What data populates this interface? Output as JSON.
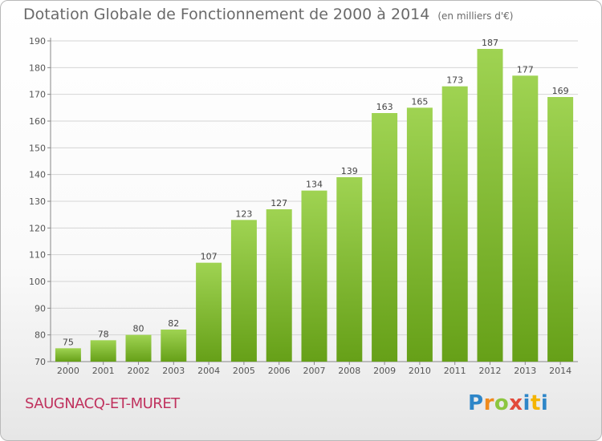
{
  "header": {
    "title": "Dotation Globale de Fonctionnement de 2000 à 2014",
    "subtitle": "(en milliers d'€)"
  },
  "footer": {
    "commune": "SAUGNACQ-ET-MURET",
    "logo_text": "Proxiti"
  },
  "colors": {
    "bar_top": "#9fd352",
    "bar_bottom": "#66a018",
    "grid": "#d4d4d4",
    "commune_text": "#c0325e"
  },
  "chart_data": {
    "type": "bar",
    "title": "Dotation Globale de Fonctionnement de 2000 à 2014",
    "subtitle": "(en milliers d'€)",
    "xlabel": "",
    "ylabel": "",
    "categories": [
      "2000",
      "2001",
      "2002",
      "2003",
      "2004",
      "2005",
      "2006",
      "2007",
      "2008",
      "2009",
      "2010",
      "2011",
      "2012",
      "2013",
      "2014"
    ],
    "values": [
      75,
      78,
      80,
      82,
      107,
      123,
      127,
      134,
      139,
      163,
      165,
      173,
      187,
      177,
      169
    ],
    "ylim": [
      70,
      190
    ],
    "yticks": [
      70,
      80,
      90,
      100,
      110,
      120,
      130,
      140,
      150,
      160,
      170,
      180,
      190
    ],
    "grid": true,
    "legend": "none",
    "data_labels": true
  }
}
